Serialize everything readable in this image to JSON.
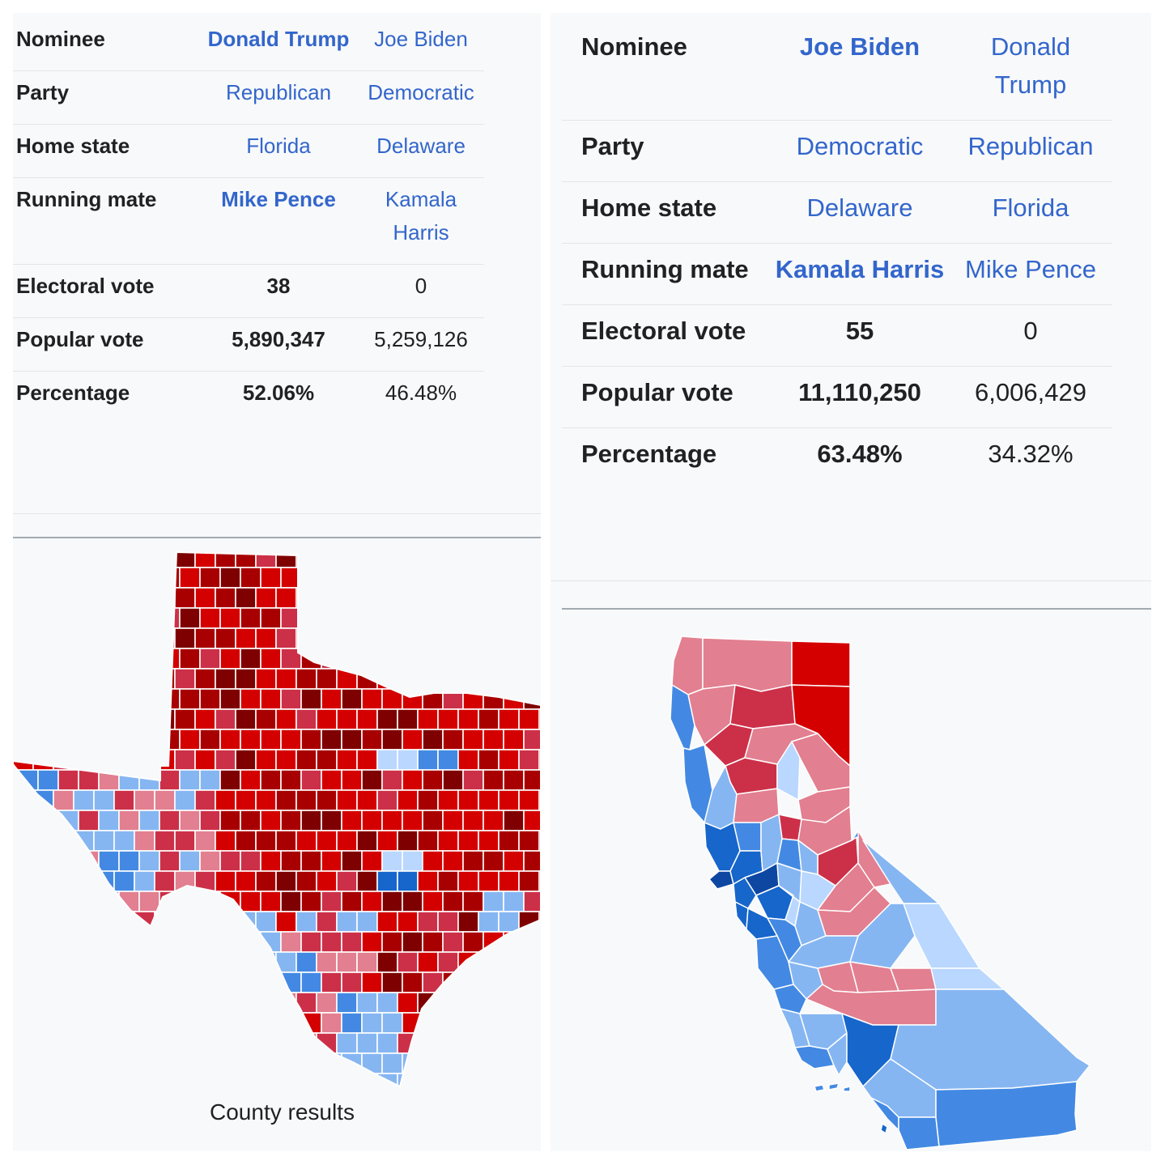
{
  "colors": {
    "rep_dark": "#7f0000",
    "rep_strong": "#a80000",
    "rep_mid": "#d40000",
    "rep_light": "#cc3048",
    "rep_pale": "#e27f90",
    "dem_dark": "#0d47a1",
    "dem_strong": "#1666cb",
    "dem_mid": "#4389e3",
    "dem_light": "#86b6f2",
    "dem_pale": "#b9d7ff",
    "link": "#3366cc",
    "panel_bg": "#f8f9fa"
  },
  "texas": {
    "labels": {
      "nominee": "Nominee",
      "party": "Party",
      "home_state": "Home state",
      "running_mate": "Running mate",
      "electoral_vote": "Electoral vote",
      "popular_vote": "Popular vote",
      "percentage": "Percentage"
    },
    "candidates": [
      {
        "nominee": "Donald Trump",
        "party": "Republican",
        "home_state": "Florida",
        "running_mate": "Mike Pence",
        "electoral_vote": "38",
        "popular_vote": "5,890,347",
        "percentage": "52.06%"
      },
      {
        "nominee": "Joe Biden",
        "party": "Democratic",
        "home_state": "Delaware",
        "running_mate": "Kamala Harris",
        "electoral_vote": "0",
        "popular_vote": "5,259,126",
        "percentage": "46.48%"
      }
    ],
    "map_caption": "County results"
  },
  "california": {
    "labels": {
      "nominee": "Nominee",
      "party": "Party",
      "home_state": "Home state",
      "running_mate": "Running mate",
      "electoral_vote": "Electoral vote",
      "popular_vote": "Popular vote",
      "percentage": "Percentage"
    },
    "candidates": [
      {
        "nominee": "Joe Biden",
        "party": "Democratic",
        "home_state": "Delaware",
        "running_mate": "Kamala Harris",
        "electoral_vote": "55",
        "popular_vote": "11,110,250",
        "percentage": "63.48%"
      },
      {
        "nominee": "Donald Trump",
        "party": "Republican",
        "home_state": "Florida",
        "running_mate": "Mike Pence",
        "electoral_vote": "0",
        "popular_vote": "6,006,429",
        "percentage": "34.32%"
      }
    ]
  }
}
